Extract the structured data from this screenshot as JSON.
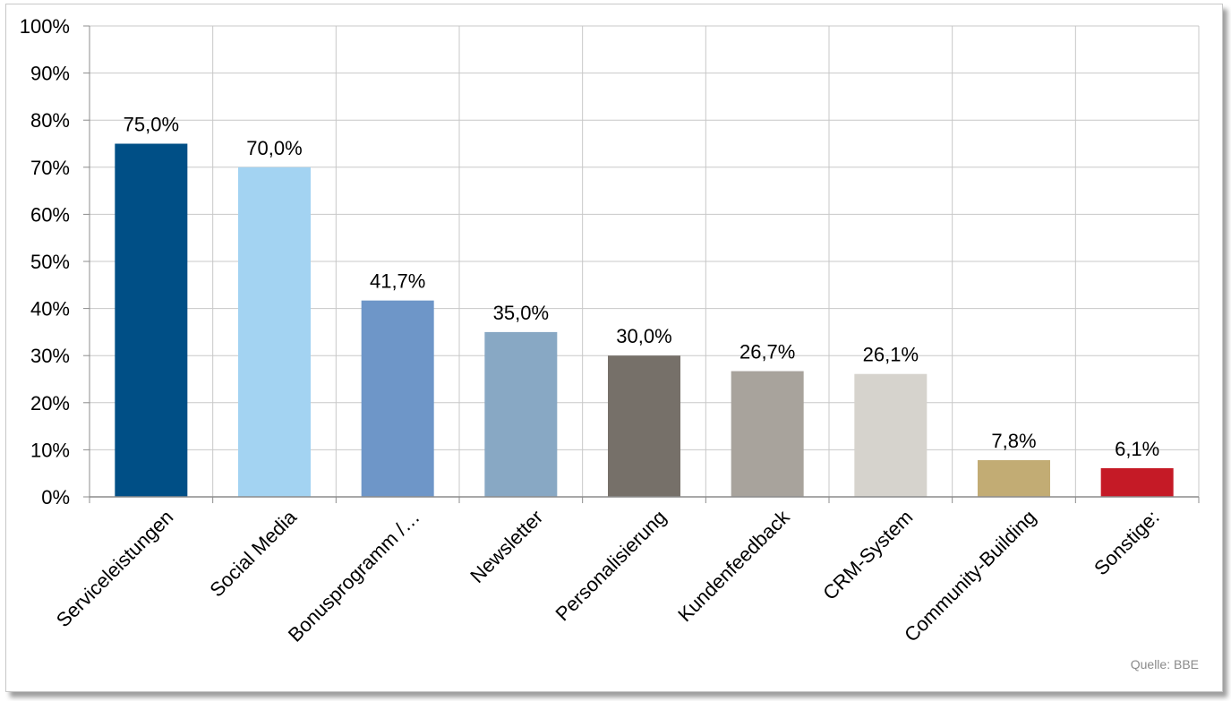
{
  "chart_data": {
    "type": "bar",
    "categories": [
      "Serviceleistungen",
      "Social Media",
      "Bonusprogramm /…",
      "Newsletter",
      "Personalisierung",
      "Kundenfeedback",
      "CRM-System",
      "Community-Building",
      "Sonstige:"
    ],
    "values": [
      75.0,
      70.0,
      41.7,
      35.0,
      30.0,
      26.7,
      26.1,
      7.8,
      6.1
    ],
    "data_labels": [
      "75,0%",
      "70,0%",
      "41,7%",
      "35,0%",
      "30,0%",
      "26,7%",
      "26,1%",
      "7,8%",
      "6,1%"
    ],
    "bar_colors": [
      "#004f86",
      "#a3d3f2",
      "#6e96c8",
      "#88a8c4",
      "#767069",
      "#a8a39c",
      "#d6d3cd",
      "#c2ac74",
      "#c51a26"
    ],
    "ylim": [
      0,
      100
    ],
    "y_ticks": [
      0,
      10,
      20,
      30,
      40,
      50,
      60,
      70,
      80,
      90,
      100
    ],
    "y_tick_labels": [
      "0%",
      "10%",
      "20%",
      "30%",
      "40%",
      "50%",
      "60%",
      "70%",
      "80%",
      "90%",
      "100%"
    ],
    "grid": true,
    "legend": "none"
  },
  "source": "Quelle:  BBE"
}
